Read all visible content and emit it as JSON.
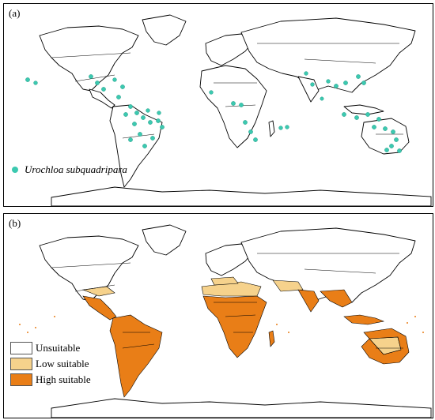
{
  "panel_a": {
    "label": "(a)",
    "legend": {
      "species": "Urochloa subquadripara",
      "color": "#3cc9b0"
    }
  },
  "panel_b": {
    "label": "(b)",
    "legend": [
      {
        "label": "Unsuitable",
        "color": "#ffffff"
      },
      {
        "label": "Low suitable",
        "color": "#f6d28c"
      },
      {
        "label": "High suitable",
        "color": "#e97e17"
      }
    ]
  }
}
